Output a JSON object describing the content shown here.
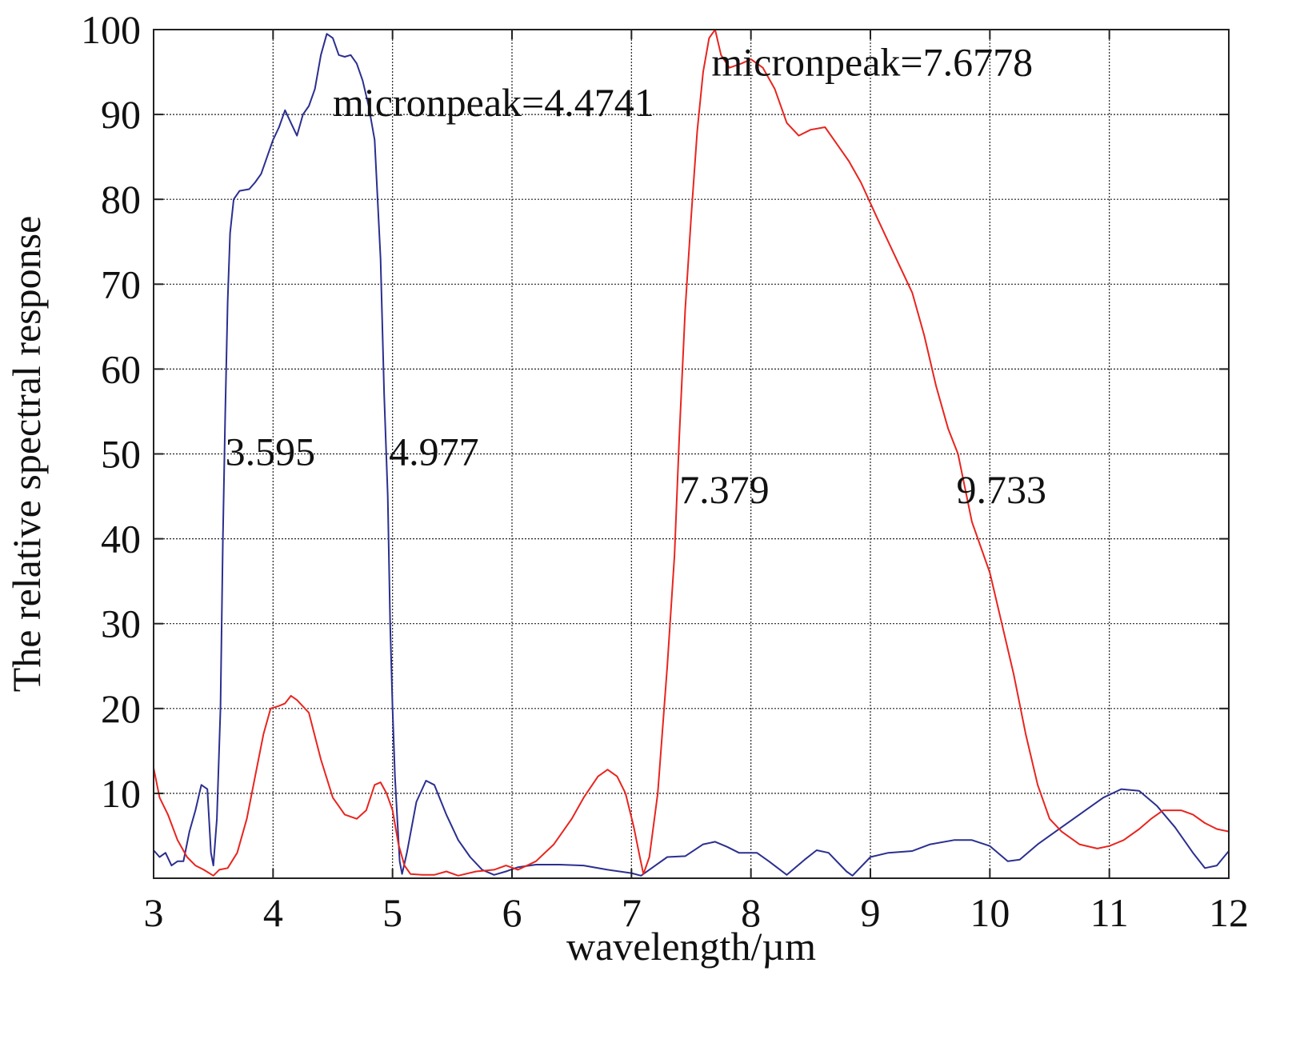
{
  "chart_data": {
    "type": "line",
    "title": "",
    "xlabel": "wavelength/µm",
    "ylabel": "The relative spectral response",
    "xlim": [
      3,
      12
    ],
    "ylim": [
      0,
      100
    ],
    "xticks": [
      3,
      4,
      5,
      6,
      7,
      8,
      9,
      10,
      11,
      12
    ],
    "yticks": [
      10,
      20,
      30,
      40,
      50,
      60,
      70,
      80,
      90,
      100
    ],
    "grid": true,
    "legend": "none",
    "series": [
      {
        "color": "#2b2f8f",
        "points": [
          [
            3.0,
            3.3
          ],
          [
            3.05,
            2.5
          ],
          [
            3.1,
            3.0
          ],
          [
            3.15,
            1.5
          ],
          [
            3.2,
            2.0
          ],
          [
            3.25,
            2.0
          ],
          [
            3.3,
            5.5
          ],
          [
            3.35,
            8.0
          ],
          [
            3.4,
            11.0
          ],
          [
            3.45,
            10.5
          ],
          [
            3.48,
            3.0
          ],
          [
            3.5,
            1.5
          ],
          [
            3.53,
            7.0
          ],
          [
            3.56,
            20.0
          ],
          [
            3.58,
            40.0
          ],
          [
            3.6,
            55.0
          ],
          [
            3.62,
            68.0
          ],
          [
            3.64,
            76.0
          ],
          [
            3.67,
            80.0
          ],
          [
            3.72,
            81.0
          ],
          [
            3.8,
            81.2
          ],
          [
            3.85,
            82.0
          ],
          [
            3.9,
            83.0
          ],
          [
            3.95,
            85.0
          ],
          [
            4.0,
            87.0
          ],
          [
            4.05,
            88.5
          ],
          [
            4.1,
            90.5
          ],
          [
            4.15,
            89.0
          ],
          [
            4.2,
            87.5
          ],
          [
            4.25,
            90.0
          ],
          [
            4.3,
            91.0
          ],
          [
            4.35,
            93.0
          ],
          [
            4.4,
            97.0
          ],
          [
            4.45,
            99.5
          ],
          [
            4.5,
            99.0
          ],
          [
            4.55,
            97.0
          ],
          [
            4.6,
            96.8
          ],
          [
            4.65,
            97.0
          ],
          [
            4.7,
            96.0
          ],
          [
            4.75,
            94.0
          ],
          [
            4.8,
            91.0
          ],
          [
            4.85,
            87.0
          ],
          [
            4.9,
            73.0
          ],
          [
            4.93,
            57.0
          ],
          [
            4.96,
            45.0
          ],
          [
            4.98,
            30.0
          ],
          [
            5.0,
            20.0
          ],
          [
            5.02,
            12.0
          ],
          [
            5.04,
            7.0
          ],
          [
            5.06,
            2.0
          ],
          [
            5.08,
            0.5
          ],
          [
            5.12,
            3.0
          ],
          [
            5.2,
            9.0
          ],
          [
            5.28,
            11.5
          ],
          [
            5.35,
            11.0
          ],
          [
            5.45,
            7.5
          ],
          [
            5.55,
            4.5
          ],
          [
            5.65,
            2.5
          ],
          [
            5.75,
            1.0
          ],
          [
            5.85,
            0.4
          ],
          [
            5.95,
            0.8
          ],
          [
            6.05,
            1.3
          ],
          [
            6.2,
            1.6
          ],
          [
            6.4,
            1.6
          ],
          [
            6.6,
            1.5
          ],
          [
            6.8,
            1.0
          ],
          [
            7.0,
            0.6
          ],
          [
            7.08,
            0.3
          ],
          [
            7.1,
            0.5
          ],
          [
            7.2,
            1.5
          ],
          [
            7.3,
            2.5
          ],
          [
            7.45,
            2.6
          ],
          [
            7.6,
            4.0
          ],
          [
            7.7,
            4.3
          ],
          [
            7.8,
            3.7
          ],
          [
            7.9,
            3.0
          ],
          [
            8.05,
            3.0
          ],
          [
            8.15,
            2.0
          ],
          [
            8.3,
            0.4
          ],
          [
            8.45,
            2.2
          ],
          [
            8.55,
            3.3
          ],
          [
            8.65,
            3.0
          ],
          [
            8.8,
            0.8
          ],
          [
            8.85,
            0.3
          ],
          [
            9.0,
            2.5
          ],
          [
            9.15,
            3.0
          ],
          [
            9.35,
            3.2
          ],
          [
            9.5,
            4.0
          ],
          [
            9.7,
            4.5
          ],
          [
            9.85,
            4.5
          ],
          [
            10.0,
            3.8
          ],
          [
            10.15,
            2.0
          ],
          [
            10.25,
            2.2
          ],
          [
            10.4,
            4.0
          ],
          [
            10.6,
            6.0
          ],
          [
            10.8,
            8.0
          ],
          [
            10.95,
            9.5
          ],
          [
            11.1,
            10.5
          ],
          [
            11.25,
            10.3
          ],
          [
            11.4,
            8.5
          ],
          [
            11.55,
            6.0
          ],
          [
            11.7,
            3.0
          ],
          [
            11.8,
            1.2
          ],
          [
            11.9,
            1.5
          ],
          [
            12.0,
            3.2
          ]
        ]
      },
      {
        "color": "#e8251f",
        "points": [
          [
            3.0,
            13.0
          ],
          [
            3.05,
            9.5
          ],
          [
            3.12,
            7.5
          ],
          [
            3.2,
            4.5
          ],
          [
            3.28,
            2.5
          ],
          [
            3.35,
            1.5
          ],
          [
            3.42,
            1.0
          ],
          [
            3.5,
            0.3
          ],
          [
            3.55,
            1.0
          ],
          [
            3.62,
            1.2
          ],
          [
            3.7,
            3.0
          ],
          [
            3.78,
            7.0
          ],
          [
            3.85,
            12.0
          ],
          [
            3.92,
            17.0
          ],
          [
            3.98,
            20.0
          ],
          [
            4.05,
            20.3
          ],
          [
            4.1,
            20.6
          ],
          [
            4.15,
            21.5
          ],
          [
            4.2,
            21.0
          ],
          [
            4.3,
            19.5
          ],
          [
            4.4,
            14.0
          ],
          [
            4.5,
            9.5
          ],
          [
            4.6,
            7.5
          ],
          [
            4.7,
            7.0
          ],
          [
            4.78,
            8.0
          ],
          [
            4.85,
            11.0
          ],
          [
            4.9,
            11.3
          ],
          [
            4.95,
            10.0
          ],
          [
            5.0,
            8.0
          ],
          [
            5.05,
            4.0
          ],
          [
            5.1,
            1.5
          ],
          [
            5.15,
            0.5
          ],
          [
            5.25,
            0.4
          ],
          [
            5.35,
            0.4
          ],
          [
            5.45,
            0.8
          ],
          [
            5.55,
            0.3
          ],
          [
            5.7,
            0.8
          ],
          [
            5.85,
            1.0
          ],
          [
            5.95,
            1.5
          ],
          [
            6.05,
            1.0
          ],
          [
            6.2,
            2.0
          ],
          [
            6.35,
            4.0
          ],
          [
            6.5,
            7.0
          ],
          [
            6.6,
            9.5
          ],
          [
            6.72,
            12.0
          ],
          [
            6.8,
            12.8
          ],
          [
            6.88,
            12.0
          ],
          [
            6.95,
            10.0
          ],
          [
            7.02,
            6.0
          ],
          [
            7.07,
            2.5
          ],
          [
            7.1,
            0.5
          ],
          [
            7.15,
            2.5
          ],
          [
            7.22,
            10.0
          ],
          [
            7.3,
            25.0
          ],
          [
            7.36,
            38.0
          ],
          [
            7.4,
            52.0
          ],
          [
            7.45,
            67.0
          ],
          [
            7.5,
            78.0
          ],
          [
            7.55,
            88.0
          ],
          [
            7.6,
            95.0
          ],
          [
            7.65,
            99.0
          ],
          [
            7.7,
            100.0
          ],
          [
            7.75,
            97.0
          ],
          [
            7.82,
            95.5
          ],
          [
            7.92,
            96.0
          ],
          [
            8.0,
            96.5
          ],
          [
            8.1,
            95.5
          ],
          [
            8.2,
            93.0
          ],
          [
            8.3,
            89.0
          ],
          [
            8.4,
            87.5
          ],
          [
            8.5,
            88.2
          ],
          [
            8.62,
            88.5
          ],
          [
            8.72,
            86.5
          ],
          [
            8.82,
            84.5
          ],
          [
            8.92,
            82.0
          ],
          [
            9.05,
            78.0
          ],
          [
            9.15,
            75.0
          ],
          [
            9.25,
            72.0
          ],
          [
            9.35,
            69.0
          ],
          [
            9.45,
            64.0
          ],
          [
            9.55,
            58.0
          ],
          [
            9.65,
            53.0
          ],
          [
            9.733,
            50.0
          ],
          [
            9.85,
            42.0
          ],
          [
            10.0,
            36.0
          ],
          [
            10.1,
            30.0
          ],
          [
            10.2,
            24.0
          ],
          [
            10.3,
            17.0
          ],
          [
            10.4,
            11.0
          ],
          [
            10.5,
            7.0
          ],
          [
            10.6,
            5.5
          ],
          [
            10.75,
            4.0
          ],
          [
            10.9,
            3.5
          ],
          [
            11.0,
            3.8
          ],
          [
            11.12,
            4.5
          ],
          [
            11.25,
            5.8
          ],
          [
            11.35,
            7.0
          ],
          [
            11.45,
            8.0
          ],
          [
            11.6,
            8.0
          ],
          [
            11.7,
            7.5
          ],
          [
            11.8,
            6.5
          ],
          [
            11.9,
            5.8
          ],
          [
            12.0,
            5.5
          ]
        ]
      }
    ],
    "annotations": [
      {
        "text": "micronpeak=4.4741",
        "x": 4.5,
        "y": 89.8
      },
      {
        "text": "micronpeak=7.6778",
        "x": 7.67,
        "y": 94.6
      },
      {
        "text": "3.595",
        "x": 3.6,
        "y": 48.7
      },
      {
        "text": "4.977",
        "x": 4.97,
        "y": 48.7
      },
      {
        "text": "7.379",
        "x": 7.4,
        "y": 44.2
      },
      {
        "text": "9.733",
        "x": 9.72,
        "y": 44.2
      }
    ]
  }
}
